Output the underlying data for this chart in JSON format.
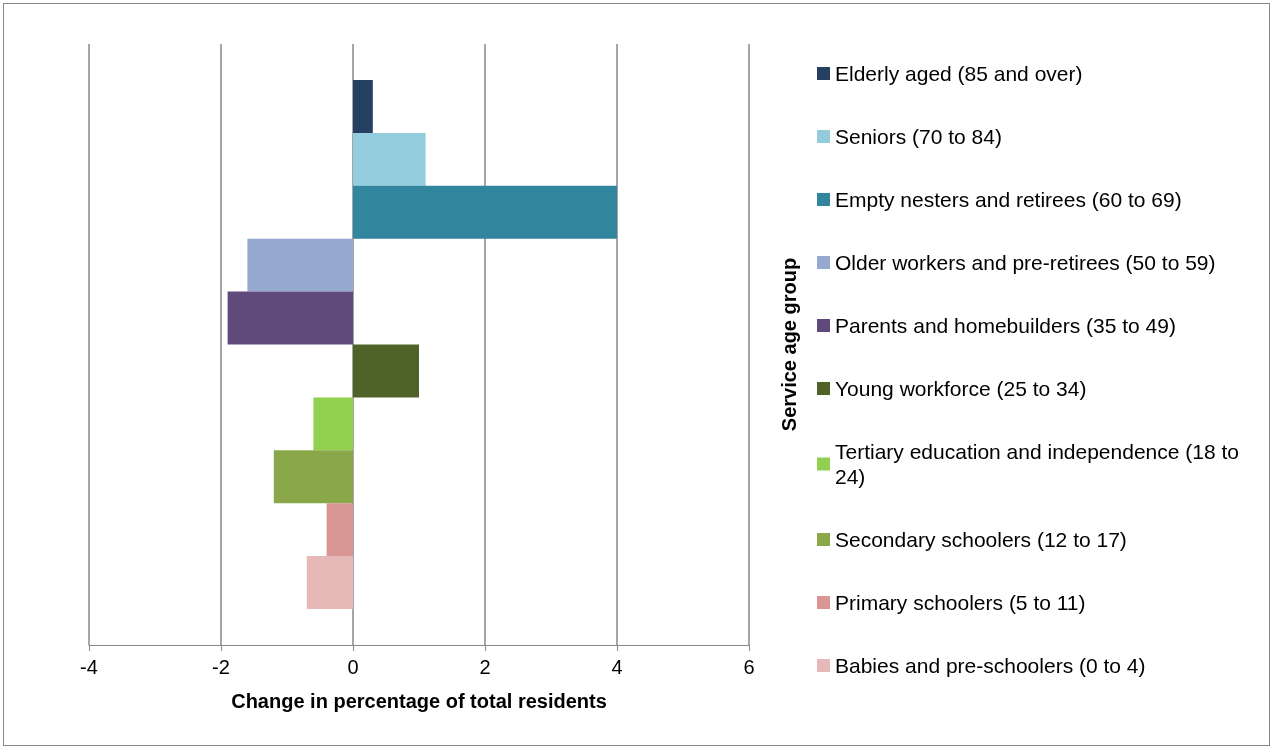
{
  "chart_data": {
    "type": "bar",
    "orientation": "horizontal",
    "xlabel": "Change in percentage of total residents",
    "ylabel": "Service age group",
    "categories": [
      null
    ],
    "series": [
      {
        "name": "Elderly aged (85 and over)",
        "color": "#243f60",
        "values": [
          0.3
        ]
      },
      {
        "name": "Seniors (70 to 84)",
        "color": "#93cddd",
        "values": [
          1.1
        ]
      },
      {
        "name": "Empty nesters and retirees (60 to 69)",
        "color": "#31859c",
        "values": [
          4.0
        ]
      },
      {
        "name": "Older workers and pre-retirees (50 to 59)",
        "color": "#95a8d0",
        "values": [
          -1.6
        ]
      },
      {
        "name": "Parents and homebuilders (35 to 49)",
        "color": "#604a7b",
        "values": [
          -1.9
        ]
      },
      {
        "name": "Young workforce (25 to 34)",
        "color": "#4f6228",
        "values": [
          1.0
        ]
      },
      {
        "name": "Tertiary education and independence (18 to 24)",
        "color": "#92d050",
        "values": [
          -0.6
        ]
      },
      {
        "name": "Secondary schoolers (12 to 17)",
        "color": "#8aa84a",
        "values": [
          -1.2
        ]
      },
      {
        "name": "Primary schoolers (5 to 11)",
        "color": "#d99694",
        "values": [
          -0.4
        ]
      },
      {
        "name": "Babies and pre-schoolers (0 to 4)",
        "color": "#e6b9b8",
        "values": [
          -0.7
        ]
      }
    ],
    "xlim": [
      -4,
      6
    ],
    "xticks": [
      -4,
      -2,
      0,
      2,
      4,
      6
    ],
    "grid": "x",
    "legend": "right"
  }
}
